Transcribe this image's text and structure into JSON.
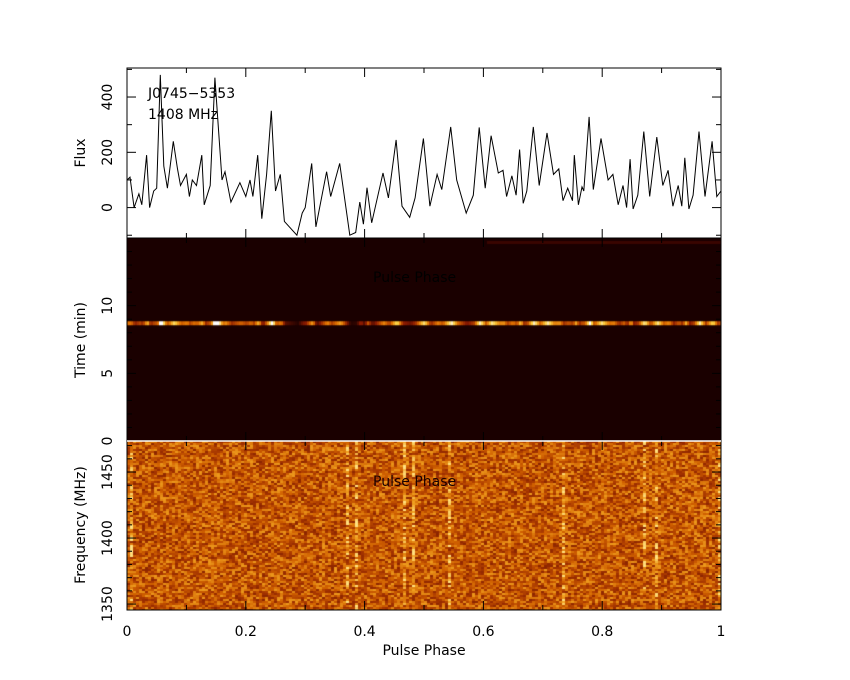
{
  "chart_data": [
    {
      "type": "line",
      "panel": "profile",
      "title_lines": [
        "J0745−5353",
        "1408 MHz"
      ],
      "xlabel": "",
      "ylabel": "Flux",
      "xlim": [
        0,
        1
      ],
      "ylim": [
        -110,
        505
      ],
      "yticks": [
        0,
        200,
        400
      ],
      "yticklabels": [
        "0",
        "200",
        "400"
      ],
      "x": [
        0,
        0.005,
        0.012,
        0.02,
        0.025,
        0.033,
        0.038,
        0.045,
        0.05,
        0.056,
        0.062,
        0.068,
        0.078,
        0.085,
        0.09,
        0.1,
        0.105,
        0.11,
        0.117,
        0.126,
        0.13,
        0.14,
        0.148,
        0.16,
        0.165,
        0.175,
        0.19,
        0.2,
        0.207,
        0.212,
        0.22,
        0.227,
        0.235,
        0.243,
        0.25,
        0.258,
        0.265,
        0.286,
        0.295,
        0.3,
        0.311,
        0.318,
        0.336,
        0.343,
        0.358,
        0.375,
        0.385,
        0.392,
        0.398,
        0.404,
        0.412,
        0.431,
        0.44,
        0.453,
        0.463,
        0.476,
        0.485,
        0.499,
        0.51,
        0.522,
        0.53,
        0.545,
        0.555,
        0.571,
        0.583,
        0.593,
        0.603,
        0.613,
        0.625,
        0.633,
        0.639,
        0.648,
        0.655,
        0.661,
        0.667,
        0.673,
        0.684,
        0.694,
        0.707,
        0.718,
        0.727,
        0.734,
        0.742,
        0.75,
        0.753,
        0.76,
        0.766,
        0.769,
        0.778,
        0.785,
        0.798,
        0.81,
        0.818,
        0.827,
        0.835,
        0.841,
        0.847,
        0.852,
        0.86,
        0.87,
        0.88,
        0.892,
        0.902,
        0.911,
        0.919,
        0.928,
        0.934,
        0.939,
        0.946,
        0.953,
        0.963,
        0.973,
        0.985,
        0.993,
        1.0
      ],
      "y": [
        100,
        110,
        0,
        50,
        10,
        190,
        0,
        60,
        70,
        480,
        150,
        70,
        240,
        140,
        80,
        120,
        40,
        100,
        80,
        190,
        10,
        80,
        470,
        100,
        130,
        20,
        90,
        40,
        100,
        40,
        190,
        -40,
        120,
        350,
        60,
        120,
        -50,
        -100,
        -20,
        0,
        160,
        -70,
        130,
        40,
        160,
        -100,
        -90,
        20,
        -60,
        72,
        -55,
        125,
        35,
        245,
        5,
        -35,
        35,
        250,
        5,
        120,
        65,
        292,
        100,
        -20,
        45,
        290,
        70,
        260,
        125,
        135,
        40,
        115,
        45,
        210,
        15,
        60,
        292,
        80,
        270,
        120,
        140,
        25,
        70,
        25,
        190,
        10,
        75,
        60,
        328,
        65,
        250,
        100,
        120,
        10,
        80,
        0,
        175,
        -5,
        45,
        275,
        40,
        255,
        80,
        135,
        5,
        80,
        5,
        180,
        -5,
        45,
        275,
        40,
        240,
        40,
        60
      ]
    },
    {
      "type": "heatmap",
      "panel": "time-phase",
      "xlabel": "Pulse Phase",
      "ylabel": "Time (min)",
      "xlim": [
        0,
        1
      ],
      "ylim": [
        0,
        15
      ],
      "yticks": [
        5,
        10
      ],
      "yticklabels": [
        "5",
        "10"
      ],
      "bright_subintegration_time_min": 8.7,
      "colormap": [
        "#1a0000",
        "#8b1a00",
        "#e07000",
        "#ffd040",
        "#ffffff"
      ]
    },
    {
      "type": "heatmap",
      "panel": "frequency-phase",
      "xlabel": "Pulse Phase",
      "ylabel": "Frequency (MHz)",
      "xlim": [
        0,
        1
      ],
      "ylim": [
        1345.5,
        1473.5
      ],
      "yticks": [
        1350,
        1400,
        1450
      ],
      "yticklabels": [
        "1350",
        "1400",
        "1450"
      ],
      "xticks": [
        0,
        0.2,
        0.4,
        0.6,
        0.8,
        1
      ],
      "xticklabels": [
        "0",
        "0.2",
        "0.4",
        "0.6",
        "0.8",
        "1"
      ],
      "bright_channels_phase": [
        0.003,
        0.37,
        0.385,
        0.465,
        0.48,
        0.54,
        0.73,
        0.87,
        0.89,
        0.995
      ],
      "colormap": [
        "#5a0a00",
        "#a03000",
        "#d06000",
        "#f0a020",
        "#ffe080"
      ]
    }
  ],
  "labels": {
    "time_axis_zero": "0",
    "time_inner_label": "Pulse Phase",
    "freq_inner_label": "Pulse Phase"
  }
}
